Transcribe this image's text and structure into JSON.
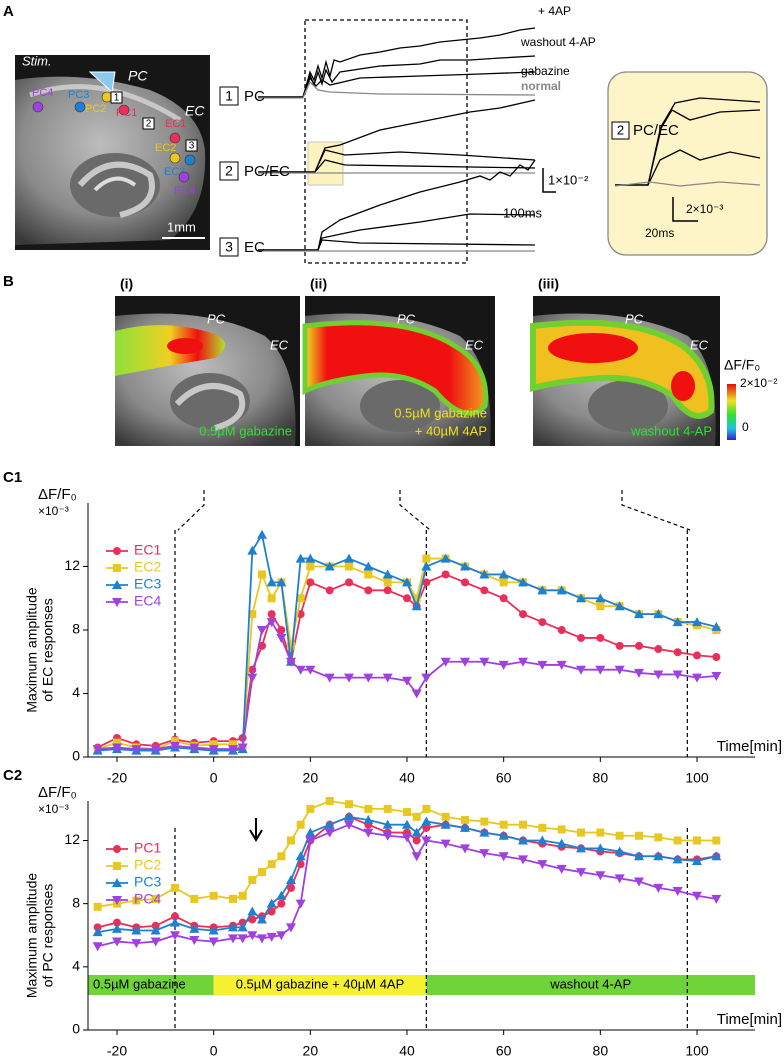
{
  "panel_a": {
    "label": "A",
    "image_labels": {
      "stim": "Stim.",
      "pc": "PC",
      "ec": "EC",
      "scale_bar": "1mm"
    },
    "sites": [
      {
        "name": "PC4",
        "color": "#a040e0"
      },
      {
        "name": "PC3",
        "color": "#2080d0"
      },
      {
        "name": "PC2",
        "color": "#e8c820"
      },
      {
        "name": "PC1",
        "color": "#e8305a"
      },
      {
        "name": "EC1",
        "color": "#e8305a"
      },
      {
        "name": "EC2",
        "color": "#e8c820"
      },
      {
        "name": "EC3",
        "color": "#2080d0"
      },
      {
        "name": "EC4",
        "color": "#a040e0"
      }
    ],
    "markers": [
      "1",
      "2",
      "3"
    ],
    "rows": [
      {
        "number": "1",
        "name": "PC"
      },
      {
        "number": "2",
        "name": "PC/EC"
      },
      {
        "number": "3",
        "name": "EC"
      }
    ],
    "trace_labels": [
      "+ 4AP",
      "washout 4-AP",
      "gabazine",
      "normal"
    ],
    "scale_y": "1×10⁻²",
    "scale_x": "100ms",
    "inset": {
      "number": "2",
      "name": "PC/EC",
      "scale_y": "2×10⁻³",
      "scale_x": "20ms"
    }
  },
  "panel_b": {
    "label": "B",
    "images": [
      {
        "index": "(i)",
        "pc": "PC",
        "ec": "EC",
        "caption": [
          "0.5µM gabazine"
        ],
        "caption_color": "#30e030"
      },
      {
        "index": "(ii)",
        "pc": "PC",
        "ec": "EC",
        "caption": [
          "0.5µM gabazine",
          "+ 40µM 4AP"
        ],
        "caption_color": "#f0e020"
      },
      {
        "index": "(iii)",
        "pc": "PC",
        "ec": "EC",
        "caption": [
          "washout 4-AP"
        ],
        "caption_color": "#30e030"
      }
    ],
    "colorbar": {
      "title": "ΔF/F₀",
      "max_label": "2×10⁻²",
      "min_label": "0"
    }
  },
  "chart_data": [
    {
      "type": "line",
      "panel": "C1",
      "unit": "ΔF/F₀",
      "scale": "×10⁻³",
      "ylabel": [
        "Maximum amplitude",
        "of EC responses"
      ],
      "xlabel": "Time[min]",
      "legend": "upper left",
      "xlim": [
        -26,
        112
      ],
      "xticks": [
        -20,
        0,
        20,
        40,
        60,
        80,
        100
      ],
      "ylim": [
        0,
        16
      ],
      "yticks": [
        0,
        4,
        8,
        12
      ],
      "vlines": [
        -8,
        44,
        98
      ],
      "x": [
        -24,
        -20,
        -16,
        -12,
        -8,
        -4,
        0,
        4,
        6,
        8,
        10,
        12,
        14,
        16,
        18,
        20,
        24,
        28,
        32,
        36,
        40,
        42,
        44,
        48,
        52,
        56,
        60,
        64,
        68,
        72,
        76,
        80,
        84,
        88,
        92,
        96,
        100,
        104
      ],
      "series": [
        {
          "name": "EC1",
          "color": "#e8305a",
          "marker": "circle",
          "values": [
            0.6,
            1.2,
            0.8,
            0.7,
            1.1,
            0.9,
            1.0,
            1.0,
            1.2,
            5.5,
            7,
            9,
            8,
            6,
            9,
            11,
            10.5,
            11,
            10.5,
            10.5,
            10,
            9.5,
            11,
            11.5,
            11,
            10.5,
            10,
            9,
            8.5,
            8,
            7.5,
            7.5,
            7,
            7,
            6.8,
            6.6,
            6.4,
            6.3
          ]
        },
        {
          "name": "EC2",
          "color": "#e8c820",
          "marker": "square",
          "values": [
            0.5,
            0.9,
            0.6,
            0.5,
            1.0,
            0.7,
            0.8,
            0.8,
            0.6,
            9,
            11.5,
            10,
            11,
            7,
            10,
            12,
            12,
            12,
            11.5,
            11,
            11,
            10,
            12.5,
            12.5,
            12,
            11.5,
            11,
            11,
            10.5,
            10.5,
            10,
            9.5,
            9.5,
            9,
            9,
            8.5,
            8.3,
            8
          ]
        },
        {
          "name": "EC3",
          "color": "#2080d0",
          "marker": "triangle-up",
          "values": [
            0.4,
            0.5,
            0.4,
            0.4,
            0.6,
            0.5,
            0.4,
            0.4,
            0.5,
            13,
            14,
            11,
            11,
            6,
            12.5,
            12.5,
            12,
            12.5,
            12,
            11.5,
            11,
            9.5,
            12,
            12.5,
            12,
            11.5,
            11.5,
            11,
            10.5,
            10.5,
            10,
            10,
            9.5,
            9,
            9,
            8.5,
            8.5,
            8.2
          ]
        },
        {
          "name": "EC4",
          "color": "#a040e0",
          "marker": "triangle-down",
          "values": [
            0.5,
            0.6,
            0.5,
            0.5,
            0.7,
            0.6,
            0.5,
            0.5,
            0.6,
            5,
            8,
            8.5,
            7.5,
            6,
            5.5,
            5.5,
            5,
            5,
            5,
            5,
            4.8,
            4,
            5,
            6,
            6,
            6,
            5.8,
            6,
            5.8,
            5.8,
            5.5,
            5.5,
            5.5,
            5.3,
            5.2,
            5.2,
            5,
            5.1
          ]
        }
      ]
    },
    {
      "type": "line",
      "panel": "C2",
      "unit": "ΔF/F₀",
      "scale": "×10⁻³",
      "ylabel": [
        "Maximum amplitude",
        "of PC responses"
      ],
      "xlabel": "Time[min]",
      "legend": "upper left",
      "xlim": [
        -26,
        112
      ],
      "xticks": [
        -20,
        0,
        20,
        40,
        60,
        80,
        100
      ],
      "ylim": [
        0,
        14.5
      ],
      "yticks": [
        0,
        4,
        8,
        12
      ],
      "vlines": [
        -8,
        44,
        98
      ],
      "conditions": [
        {
          "label": "0.5µM gabazine",
          "start": -26,
          "end": 0,
          "color": "#6fd33a"
        },
        {
          "label": "0.5µM gabazine + 40µM 4AP",
          "start": 0,
          "end": 44,
          "color": "#f5f030"
        },
        {
          "label": "washout 4-AP",
          "start": 44,
          "end": 112,
          "color": "#6fd33a"
        }
      ],
      "x": [
        -24,
        -20,
        -16,
        -12,
        -8,
        -4,
        0,
        4,
        6,
        8,
        10,
        12,
        14,
        16,
        18,
        20,
        24,
        28,
        32,
        36,
        40,
        42,
        44,
        48,
        52,
        56,
        60,
        64,
        68,
        72,
        76,
        80,
        84,
        88,
        92,
        96,
        100,
        104
      ],
      "series": [
        {
          "name": "PC1",
          "color": "#e8305a",
          "marker": "circle",
          "values": [
            6.5,
            6.8,
            6.5,
            6.6,
            7.2,
            6.6,
            6.5,
            6.6,
            6.8,
            7,
            7.2,
            7.5,
            8,
            9,
            10.5,
            12,
            13,
            13.5,
            13,
            12.5,
            12.5,
            12,
            12.8,
            13,
            12.8,
            12.5,
            12.3,
            12,
            11.8,
            11.6,
            11.5,
            11.3,
            11.2,
            11,
            11,
            10.8,
            10.8,
            11
          ]
        },
        {
          "name": "PC2",
          "color": "#e8c820",
          "marker": "square",
          "values": [
            7.8,
            8,
            8.2,
            8.3,
            9,
            8.3,
            8.5,
            8.3,
            8.5,
            9.5,
            10,
            10.5,
            11,
            12,
            13,
            14,
            14.5,
            14.3,
            14,
            14,
            13.8,
            13.5,
            14,
            13.5,
            13.3,
            13.2,
            13,
            13,
            12.8,
            12.7,
            12.5,
            12.5,
            12.3,
            12.3,
            12.2,
            12,
            12,
            12
          ]
        },
        {
          "name": "PC3",
          "color": "#2080d0",
          "marker": "triangle-up",
          "values": [
            6.2,
            6.4,
            6.3,
            6.3,
            6.8,
            6.4,
            6.3,
            6.5,
            6.5,
            7.5,
            7,
            8,
            8.5,
            9.5,
            11,
            12.5,
            13,
            13.5,
            13.3,
            13,
            13,
            12.5,
            13.2,
            13,
            12.8,
            12.5,
            12.3,
            12,
            12,
            11.8,
            11.5,
            11.5,
            11.3,
            11,
            11,
            10.8,
            10.7,
            11
          ]
        },
        {
          "name": "PC4",
          "color": "#a040e0",
          "marker": "triangle-down",
          "values": [
            5.3,
            5.6,
            5.5,
            5.6,
            6,
            5.7,
            5.6,
            5.8,
            5.8,
            6,
            5.8,
            5.9,
            6,
            6.5,
            8,
            12,
            12.5,
            13,
            12.5,
            12.3,
            12.2,
            11,
            12,
            11.8,
            11.5,
            11.2,
            11,
            10.8,
            10.5,
            10.2,
            10,
            9.8,
            9.6,
            9.4,
            9,
            8.8,
            8.5,
            8.3
          ]
        }
      ]
    }
  ]
}
